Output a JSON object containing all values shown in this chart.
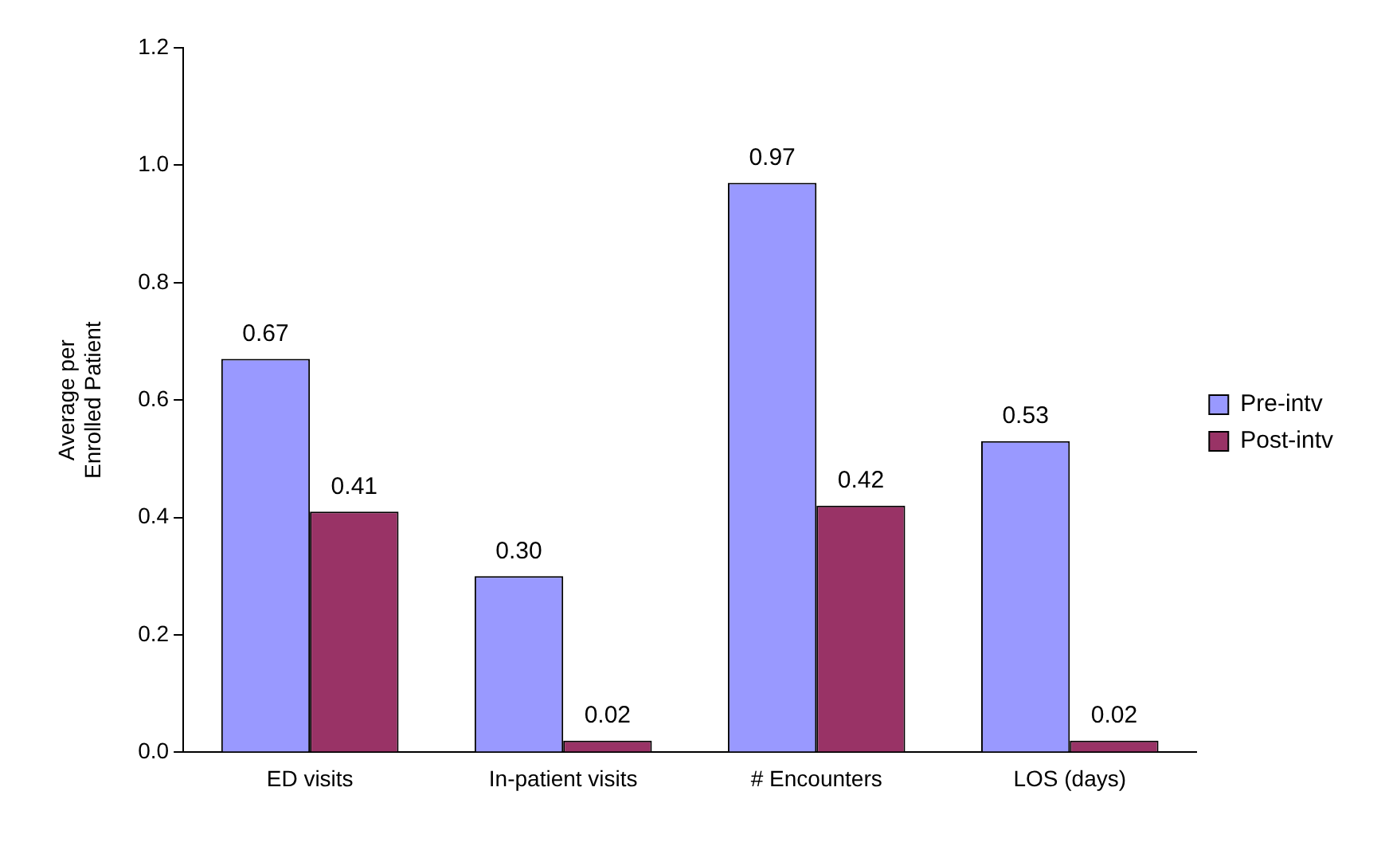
{
  "chart_data": {
    "type": "bar",
    "categories": [
      "ED visits",
      "In-patient visits",
      "# Encounters",
      "LOS (days)"
    ],
    "ylabel": "Average per Enrolled Patient",
    "series": [
      {
        "name": "Pre-intv",
        "color": "#9999ff",
        "values": [
          0.67,
          0.3,
          0.97,
          0.53
        ],
        "value_labels": [
          "0.67",
          "0.30",
          "0.97",
          "0.53"
        ]
      },
      {
        "name": "Post-intv",
        "color": "#993366",
        "values": [
          0.41,
          0.02,
          0.42,
          0.02
        ],
        "value_labels": [
          "0.41",
          "0.02",
          "0.42",
          "0.02"
        ]
      }
    ],
    "ylim": [
      0,
      1.2
    ],
    "yticks": [
      {
        "value": 0,
        "label": "0.0"
      },
      {
        "value": 0.2,
        "label": "0.2"
      },
      {
        "value": 0.4,
        "label": "0.4"
      },
      {
        "value": 0.6,
        "label": "0.6"
      },
      {
        "value": 0.8,
        "label": "0.8"
      },
      {
        "value": 1.0,
        "label": "1.0"
      },
      {
        "value": 1.2,
        "label": "1.2"
      }
    ],
    "grid": false,
    "legend": "right"
  }
}
